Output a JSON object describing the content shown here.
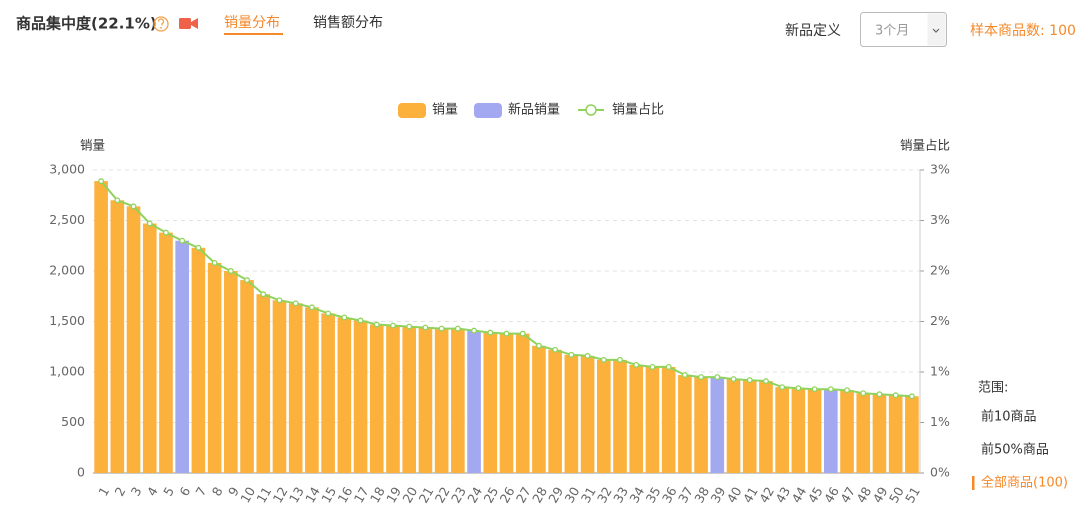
{
  "header": {
    "title": "商品集中度(22.1%)",
    "tabs": [
      "销量分布",
      "销售额分布"
    ],
    "new_product_label": "新品定义",
    "period_select": "3个月",
    "sample_count": "样本商品数: 100"
  },
  "range_panel": {
    "title": "范围:",
    "options": [
      "前10商品",
      "前50%商品",
      "全部商品(100)"
    ]
  },
  "chart_data": {
    "type": "bar",
    "y_label": "销量",
    "y2_label": "销量占比",
    "categories": [
      "1",
      "2",
      "3",
      "4",
      "5",
      "6",
      "7",
      "8",
      "9",
      "10",
      "11",
      "12",
      "13",
      "14",
      "15",
      "16",
      "17",
      "18",
      "19",
      "20",
      "21",
      "22",
      "23",
      "24",
      "25",
      "26",
      "27",
      "28",
      "29",
      "30",
      "31",
      "32",
      "33",
      "34",
      "35",
      "36",
      "37",
      "38",
      "39",
      "40",
      "41",
      "42",
      "43",
      "44",
      "45",
      "46",
      "47",
      "48",
      "49",
      "50",
      "51"
    ],
    "series": [
      {
        "name": "销量",
        "color": "#fcb13c",
        "values": [
          2890,
          2700,
          2640,
          2470,
          2380,
          null,
          2230,
          2080,
          2000,
          1910,
          1770,
          1710,
          1680,
          1640,
          1580,
          1540,
          1510,
          1470,
          1460,
          1450,
          1440,
          1430,
          1430,
          null,
          1390,
          1380,
          1380,
          1260,
          1220,
          1170,
          1160,
          1120,
          1120,
          1070,
          1050,
          1050,
          970,
          950,
          null,
          930,
          920,
          910,
          850,
          840,
          830,
          null,
          820,
          790,
          780,
          770,
          760
        ]
      },
      {
        "name": "新品销量",
        "color": "#a3a9f1",
        "values": [
          null,
          null,
          null,
          null,
          null,
          2300,
          null,
          null,
          null,
          null,
          null,
          null,
          null,
          null,
          null,
          null,
          null,
          null,
          null,
          null,
          null,
          null,
          null,
          1410,
          null,
          null,
          null,
          null,
          null,
          null,
          null,
          null,
          null,
          null,
          null,
          null,
          null,
          null,
          950,
          null,
          null,
          null,
          null,
          null,
          null,
          830,
          null,
          null,
          null,
          null,
          null
        ]
      },
      {
        "name": "销量占比",
        "color": "#8fd35c",
        "type": "line",
        "axis": "y2",
        "values": [
          2.89,
          2.7,
          2.64,
          2.47,
          2.38,
          2.3,
          2.23,
          2.08,
          2.0,
          1.91,
          1.77,
          1.71,
          1.68,
          1.64,
          1.58,
          1.54,
          1.51,
          1.47,
          1.46,
          1.45,
          1.44,
          1.43,
          1.43,
          1.41,
          1.39,
          1.38,
          1.38,
          1.26,
          1.22,
          1.17,
          1.16,
          1.12,
          1.12,
          1.07,
          1.05,
          1.05,
          0.97,
          0.95,
          0.95,
          0.93,
          0.92,
          0.91,
          0.85,
          0.84,
          0.83,
          0.83,
          0.82,
          0.79,
          0.78,
          0.77,
          0.76
        ]
      }
    ],
    "ylim": [
      0,
      3000
    ],
    "yticks": [
      0,
      500,
      {
        "value": 1000,
        "label": "1,000"
      },
      {
        "value": 1500,
        "label": "1,500"
      },
      {
        "value": 2000,
        "label": "2,000"
      },
      {
        "value": 2500,
        "label": "2,500"
      },
      {
        "value": 3000,
        "label": "3,000"
      }
    ],
    "y2lim": [
      0,
      3
    ],
    "y2ticks": [
      {
        "value": 0,
        "label": "0%"
      },
      {
        "value": 0.5,
        "label": "1%"
      },
      {
        "value": 1,
        "label": "1%"
      },
      {
        "value": 1.5,
        "label": "2%"
      },
      {
        "value": 2,
        "label": "2%"
      },
      {
        "value": 2.5,
        "label": "3%"
      },
      {
        "value": 3,
        "label": "3%"
      }
    ],
    "grid": true,
    "legend": "top"
  }
}
